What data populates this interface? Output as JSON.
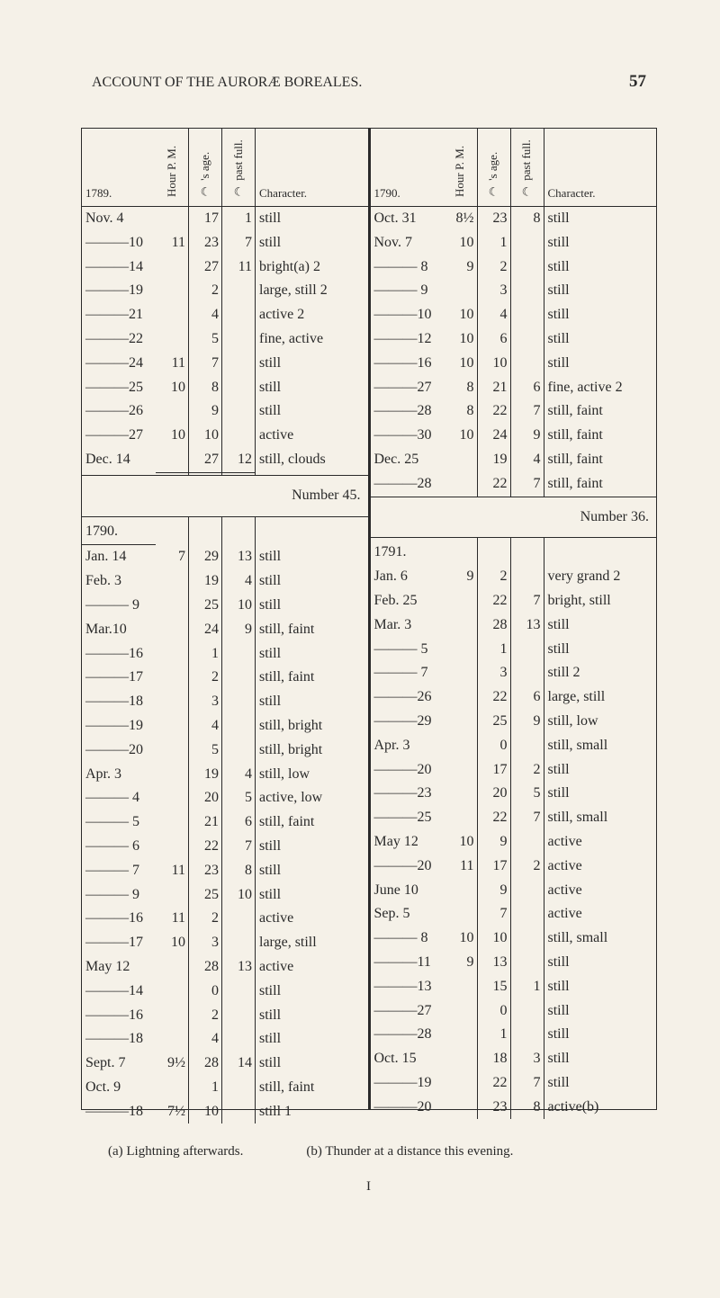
{
  "running_head": "ACCOUNT OF THE AURORÆ BOREALES.",
  "page_number": "57",
  "column_headers": {
    "hour": "Hour P. M.",
    "age": "☽ 's age.",
    "past": "☽ past full.",
    "character": "Character."
  },
  "left": {
    "block1": {
      "year": "1789.",
      "rows": [
        {
          "date": "Nov. 4",
          "h": "",
          "a": "17",
          "p": "1",
          "ch": "still"
        },
        {
          "date": "———10",
          "h": "11",
          "a": "23",
          "p": "7",
          "ch": "still"
        },
        {
          "date": "———14",
          "h": "",
          "a": "27",
          "p": "11",
          "ch": "bright(a) 2"
        },
        {
          "date": "———19",
          "h": "",
          "a": "2",
          "p": "",
          "ch": "large, still 2"
        },
        {
          "date": "———21",
          "h": "",
          "a": "4",
          "p": "",
          "ch": "active 2"
        },
        {
          "date": "———22",
          "h": "",
          "a": "5",
          "p": "",
          "ch": "fine, active"
        },
        {
          "date": "———24",
          "h": "11",
          "a": "7",
          "p": "",
          "ch": "still"
        },
        {
          "date": "———25",
          "h": "10",
          "a": "8",
          "p": "",
          "ch": "still"
        },
        {
          "date": "———26",
          "h": "",
          "a": "9",
          "p": "",
          "ch": "still"
        },
        {
          "date": "———27",
          "h": "10",
          "a": "10",
          "p": "",
          "ch": "active"
        },
        {
          "date": "Dec. 14",
          "h": "",
          "a": "27",
          "p": "12",
          "ch": "still, clouds"
        }
      ],
      "number": "Number 45."
    },
    "block2": {
      "year": "1790.",
      "rows": [
        {
          "date": "Jan. 14",
          "h": "7",
          "a": "29",
          "p": "13",
          "ch": "still"
        },
        {
          "date": "Feb. 3",
          "h": "",
          "a": "19",
          "p": "4",
          "ch": "still"
        },
        {
          "date": "——— 9",
          "h": "",
          "a": "25",
          "p": "10",
          "ch": "still"
        },
        {
          "date": "Mar.10",
          "h": "",
          "a": "24",
          "p": "9",
          "ch": "still, faint"
        },
        {
          "date": "———16",
          "h": "",
          "a": "1",
          "p": "",
          "ch": "still"
        },
        {
          "date": "———17",
          "h": "",
          "a": "2",
          "p": "",
          "ch": "still, faint"
        },
        {
          "date": "———18",
          "h": "",
          "a": "3",
          "p": "",
          "ch": "still"
        },
        {
          "date": "———19",
          "h": "",
          "a": "4",
          "p": "",
          "ch": "still, bright"
        },
        {
          "date": "———20",
          "h": "",
          "a": "5",
          "p": "",
          "ch": "still, bright"
        },
        {
          "date": "Apr. 3",
          "h": "",
          "a": "19",
          "p": "4",
          "ch": "still, low"
        },
        {
          "date": "——— 4",
          "h": "",
          "a": "20",
          "p": "5",
          "ch": "active, low"
        },
        {
          "date": "——— 5",
          "h": "",
          "a": "21",
          "p": "6",
          "ch": "still, faint"
        },
        {
          "date": "——— 6",
          "h": "",
          "a": "22",
          "p": "7",
          "ch": "still"
        },
        {
          "date": "——— 7",
          "h": "11",
          "a": "23",
          "p": "8",
          "ch": "still"
        },
        {
          "date": "——— 9",
          "h": "",
          "a": "25",
          "p": "10",
          "ch": "still"
        },
        {
          "date": "———16",
          "h": "11",
          "a": "2",
          "p": "",
          "ch": "active"
        },
        {
          "date": "———17",
          "h": "10",
          "a": "3",
          "p": "",
          "ch": "large, still"
        },
        {
          "date": "May 12",
          "h": "",
          "a": "28",
          "p": "13",
          "ch": "active"
        },
        {
          "date": "———14",
          "h": "",
          "a": "0",
          "p": "",
          "ch": "still"
        },
        {
          "date": "———16",
          "h": "",
          "a": "2",
          "p": "",
          "ch": "still"
        },
        {
          "date": "———18",
          "h": "",
          "a": "4",
          "p": "",
          "ch": "still"
        },
        {
          "date": "Sept. 7",
          "h": "9½",
          "a": "28",
          "p": "14",
          "ch": "still"
        },
        {
          "date": "Oct. 9",
          "h": "",
          "a": "1",
          "p": "",
          "ch": "still, faint"
        },
        {
          "date": "———18",
          "h": "7½",
          "a": "10",
          "p": "",
          "ch": "still 1"
        }
      ]
    }
  },
  "right": {
    "block1": {
      "year": "1790.",
      "rows": [
        {
          "date": "Oct. 31",
          "h": "8½",
          "a": "23",
          "p": "8",
          "ch": "still"
        },
        {
          "date": "Nov. 7",
          "h": "10",
          "a": "1",
          "p": "",
          "ch": "still"
        },
        {
          "date": "——— 8",
          "h": "9",
          "a": "2",
          "p": "",
          "ch": "still"
        },
        {
          "date": "——— 9",
          "h": "",
          "a": "3",
          "p": "",
          "ch": "still"
        },
        {
          "date": "———10",
          "h": "10",
          "a": "4",
          "p": "",
          "ch": "still"
        },
        {
          "date": "———12",
          "h": "10",
          "a": "6",
          "p": "",
          "ch": "still"
        },
        {
          "date": "———16",
          "h": "10",
          "a": "10",
          "p": "",
          "ch": "still"
        },
        {
          "date": "———27",
          "h": "8",
          "a": "21",
          "p": "6",
          "ch": "fine, active 2"
        },
        {
          "date": "———28",
          "h": "8",
          "a": "22",
          "p": "7",
          "ch": "still, faint"
        },
        {
          "date": "———30",
          "h": "10",
          "a": "24",
          "p": "9",
          "ch": "still, faint"
        },
        {
          "date": "Dec. 25",
          "h": "",
          "a": "19",
          "p": "4",
          "ch": "still, faint"
        },
        {
          "date": "———28",
          "h": "",
          "a": "22",
          "p": "7",
          "ch": "still, faint"
        }
      ],
      "number": "Number 36."
    },
    "block2": {
      "year": "1791.",
      "rows": [
        {
          "date": "Jan. 6",
          "h": "9",
          "a": "2",
          "p": "",
          "ch": "very grand 2"
        },
        {
          "date": "Feb. 25",
          "h": "",
          "a": "22",
          "p": "7",
          "ch": "bright, still"
        },
        {
          "date": "Mar. 3",
          "h": "",
          "a": "28",
          "p": "13",
          "ch": "still"
        },
        {
          "date": "——— 5",
          "h": "",
          "a": "1",
          "p": "",
          "ch": "still"
        },
        {
          "date": "——— 7",
          "h": "",
          "a": "3",
          "p": "",
          "ch": "still 2"
        },
        {
          "date": "———26",
          "h": "",
          "a": "22",
          "p": "6",
          "ch": "large, still"
        },
        {
          "date": "———29",
          "h": "",
          "a": "25",
          "p": "9",
          "ch": "still, low"
        },
        {
          "date": "Apr. 3",
          "h": "",
          "a": "0",
          "p": "",
          "ch": "still, small"
        },
        {
          "date": "———20",
          "h": "",
          "a": "17",
          "p": "2",
          "ch": "still"
        },
        {
          "date": "———23",
          "h": "",
          "a": "20",
          "p": "5",
          "ch": "still"
        },
        {
          "date": "———25",
          "h": "",
          "a": "22",
          "p": "7",
          "ch": "still, small"
        },
        {
          "date": "May 12",
          "h": "10",
          "a": "9",
          "p": "",
          "ch": "active"
        },
        {
          "date": "———20",
          "h": "11",
          "a": "17",
          "p": "2",
          "ch": "active"
        },
        {
          "date": "June 10",
          "h": "",
          "a": "9",
          "p": "",
          "ch": "active"
        },
        {
          "date": "Sep. 5",
          "h": "",
          "a": "7",
          "p": "",
          "ch": "active"
        },
        {
          "date": "——— 8",
          "h": "10",
          "a": "10",
          "p": "",
          "ch": "still, small"
        },
        {
          "date": "———11",
          "h": "9",
          "a": "13",
          "p": "",
          "ch": "still"
        },
        {
          "date": "———13",
          "h": "",
          "a": "15",
          "p": "1",
          "ch": "still"
        },
        {
          "date": "———27",
          "h": "",
          "a": "0",
          "p": "",
          "ch": "still"
        },
        {
          "date": "———28",
          "h": "",
          "a": "1",
          "p": "",
          "ch": "still"
        },
        {
          "date": "Oct. 15",
          "h": "",
          "a": "18",
          "p": "3",
          "ch": "still"
        },
        {
          "date": "———19",
          "h": "",
          "a": "22",
          "p": "7",
          "ch": "still"
        },
        {
          "date": "———20",
          "h": "",
          "a": "23",
          "p": "8",
          "ch": "active(b)"
        }
      ]
    }
  },
  "footnote_a": "(a) Lightning afterwards.",
  "footnote_b": "(b) Thunder at a distance this evening.",
  "signature": "I"
}
